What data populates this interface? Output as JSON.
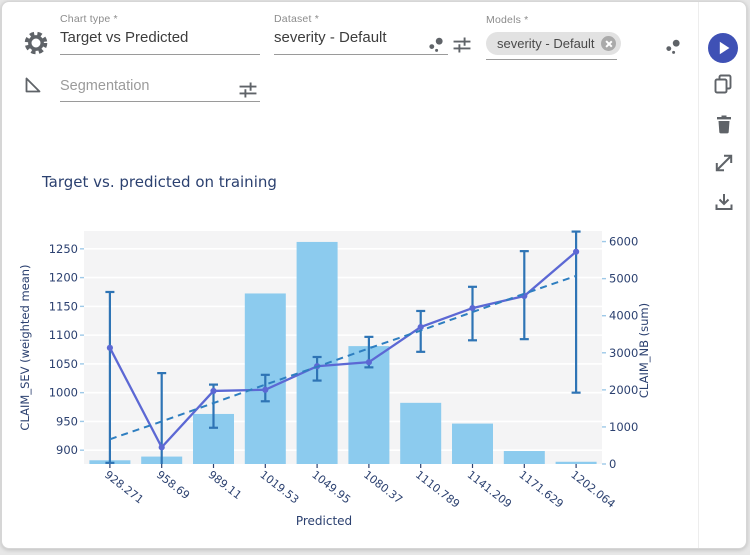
{
  "colors": {
    "accent_blue": "#3f51b5",
    "icon_gray": "#5f6368",
    "bar": "#8ccbee",
    "line": "#5c68d4",
    "error": "#2e74b5",
    "trend": "#2e7ec0",
    "chart_text": "#2c4170",
    "plot_bg": "#f4f4f5"
  },
  "toolbar": {
    "chart_type_label": "Chart type *",
    "chart_type_value": "Target vs Predicted",
    "dataset_label": "Dataset *",
    "dataset_value": "severity - Default",
    "models_label": "Models *",
    "models_chip": "severity - Default",
    "segmentation_placeholder": "Segmentation"
  },
  "action_icons": [
    "play",
    "duplicate",
    "trash",
    "expand",
    "download"
  ],
  "field_icons": [
    "scatter-dots",
    "tune"
  ],
  "chart_data": {
    "type": "bar+line",
    "title": "Target vs. predicted on training",
    "xlabel": "Predicted",
    "grid": true,
    "legend": "none",
    "left_axis": {
      "label": "CLAIM_SEV (weighted mean)",
      "min": 876,
      "max": 1281,
      "ticks": [
        900,
        950,
        1000,
        1050,
        1100,
        1150,
        1200,
        1250
      ]
    },
    "right_axis": {
      "label": "CLAIM_NB (sum)",
      "min": 0,
      "max": 6285,
      "ticks": [
        0,
        1000,
        2000,
        3000,
        4000,
        5000,
        6000
      ]
    },
    "categories": [
      "928.271",
      "958.69",
      "989.11",
      "1019.53",
      "1049.95",
      "1080.37",
      "1110.789",
      "1141.209",
      "1171.629",
      "1202.064"
    ],
    "series": [
      {
        "name": "CLAIM_NB (sum)",
        "type": "bar",
        "axis": "right",
        "values": [
          100,
          200,
          1350,
          4600,
          5990,
          3180,
          1650,
          1090,
          350,
          60
        ]
      },
      {
        "name": "CLAIM_SEV (weighted mean)",
        "type": "line",
        "axis": "left",
        "values": [
          1078,
          905,
          1003,
          1005,
          1046,
          1053,
          1114,
          1147,
          1168,
          1245
        ],
        "err_low": [
          878,
          874,
          939,
          985,
          1021,
          1044,
          1071,
          1091,
          1093,
          1000
        ],
        "err_high": [
          1175,
          1034,
          1014,
          1031,
          1062,
          1097,
          1142,
          1184,
          1246,
          1280
        ]
      },
      {
        "name": "trend",
        "type": "line-dashed",
        "axis": "left",
        "values": [
          919,
          950,
          982,
          1014,
          1045,
          1077,
          1108,
          1140,
          1172,
          1203
        ]
      }
    ]
  }
}
